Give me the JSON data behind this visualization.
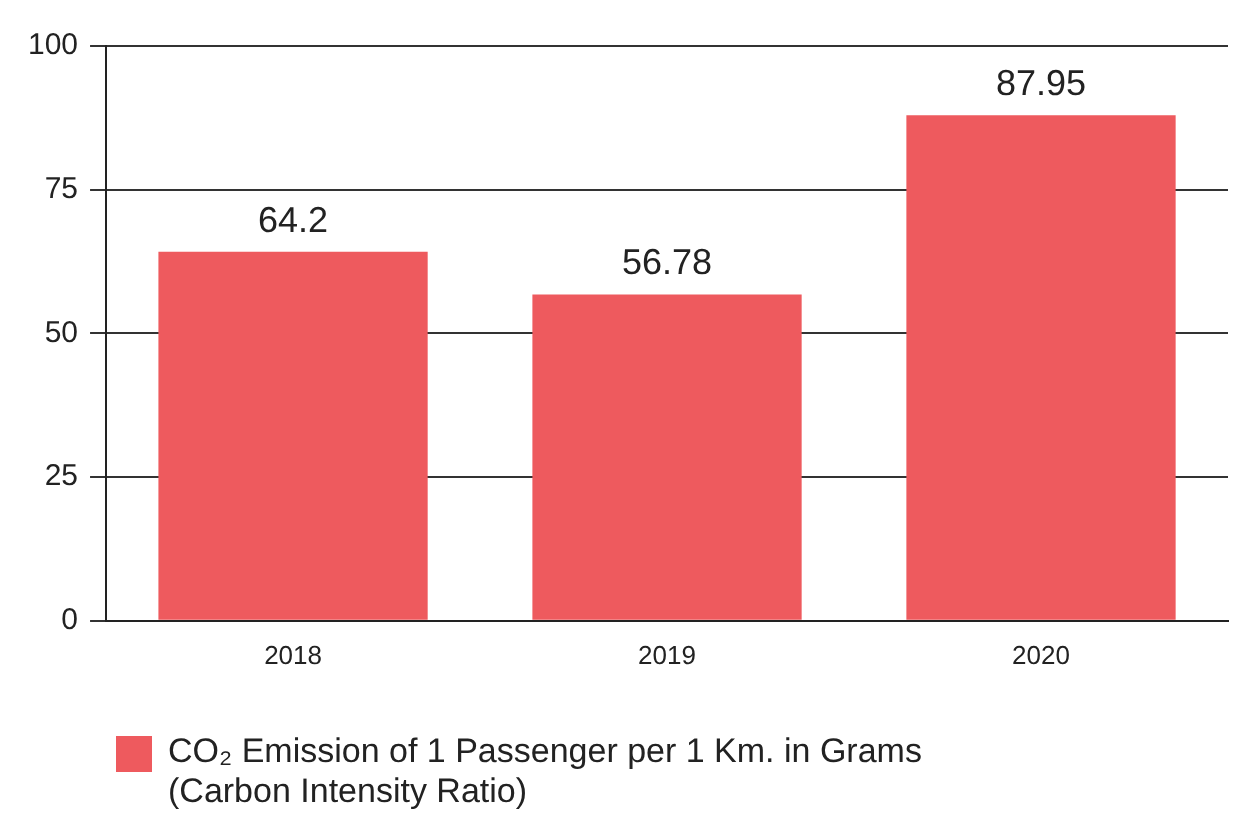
{
  "chart_data": {
    "type": "bar",
    "categories": [
      "2018",
      "2019",
      "2020"
    ],
    "series": [
      {
        "name": "CO₂ Emission of 1 Passenger per 1 Km. in Grams (Carbon Intensity Ratio)",
        "color": "#ee5a5e",
        "values": [
          64.2,
          56.78,
          87.95
        ]
      }
    ],
    "ylim": [
      0,
      100
    ],
    "yticks": [
      0,
      25,
      50,
      75,
      100
    ],
    "grid": "y",
    "legend": "bottom left",
    "data_labels": true
  }
}
